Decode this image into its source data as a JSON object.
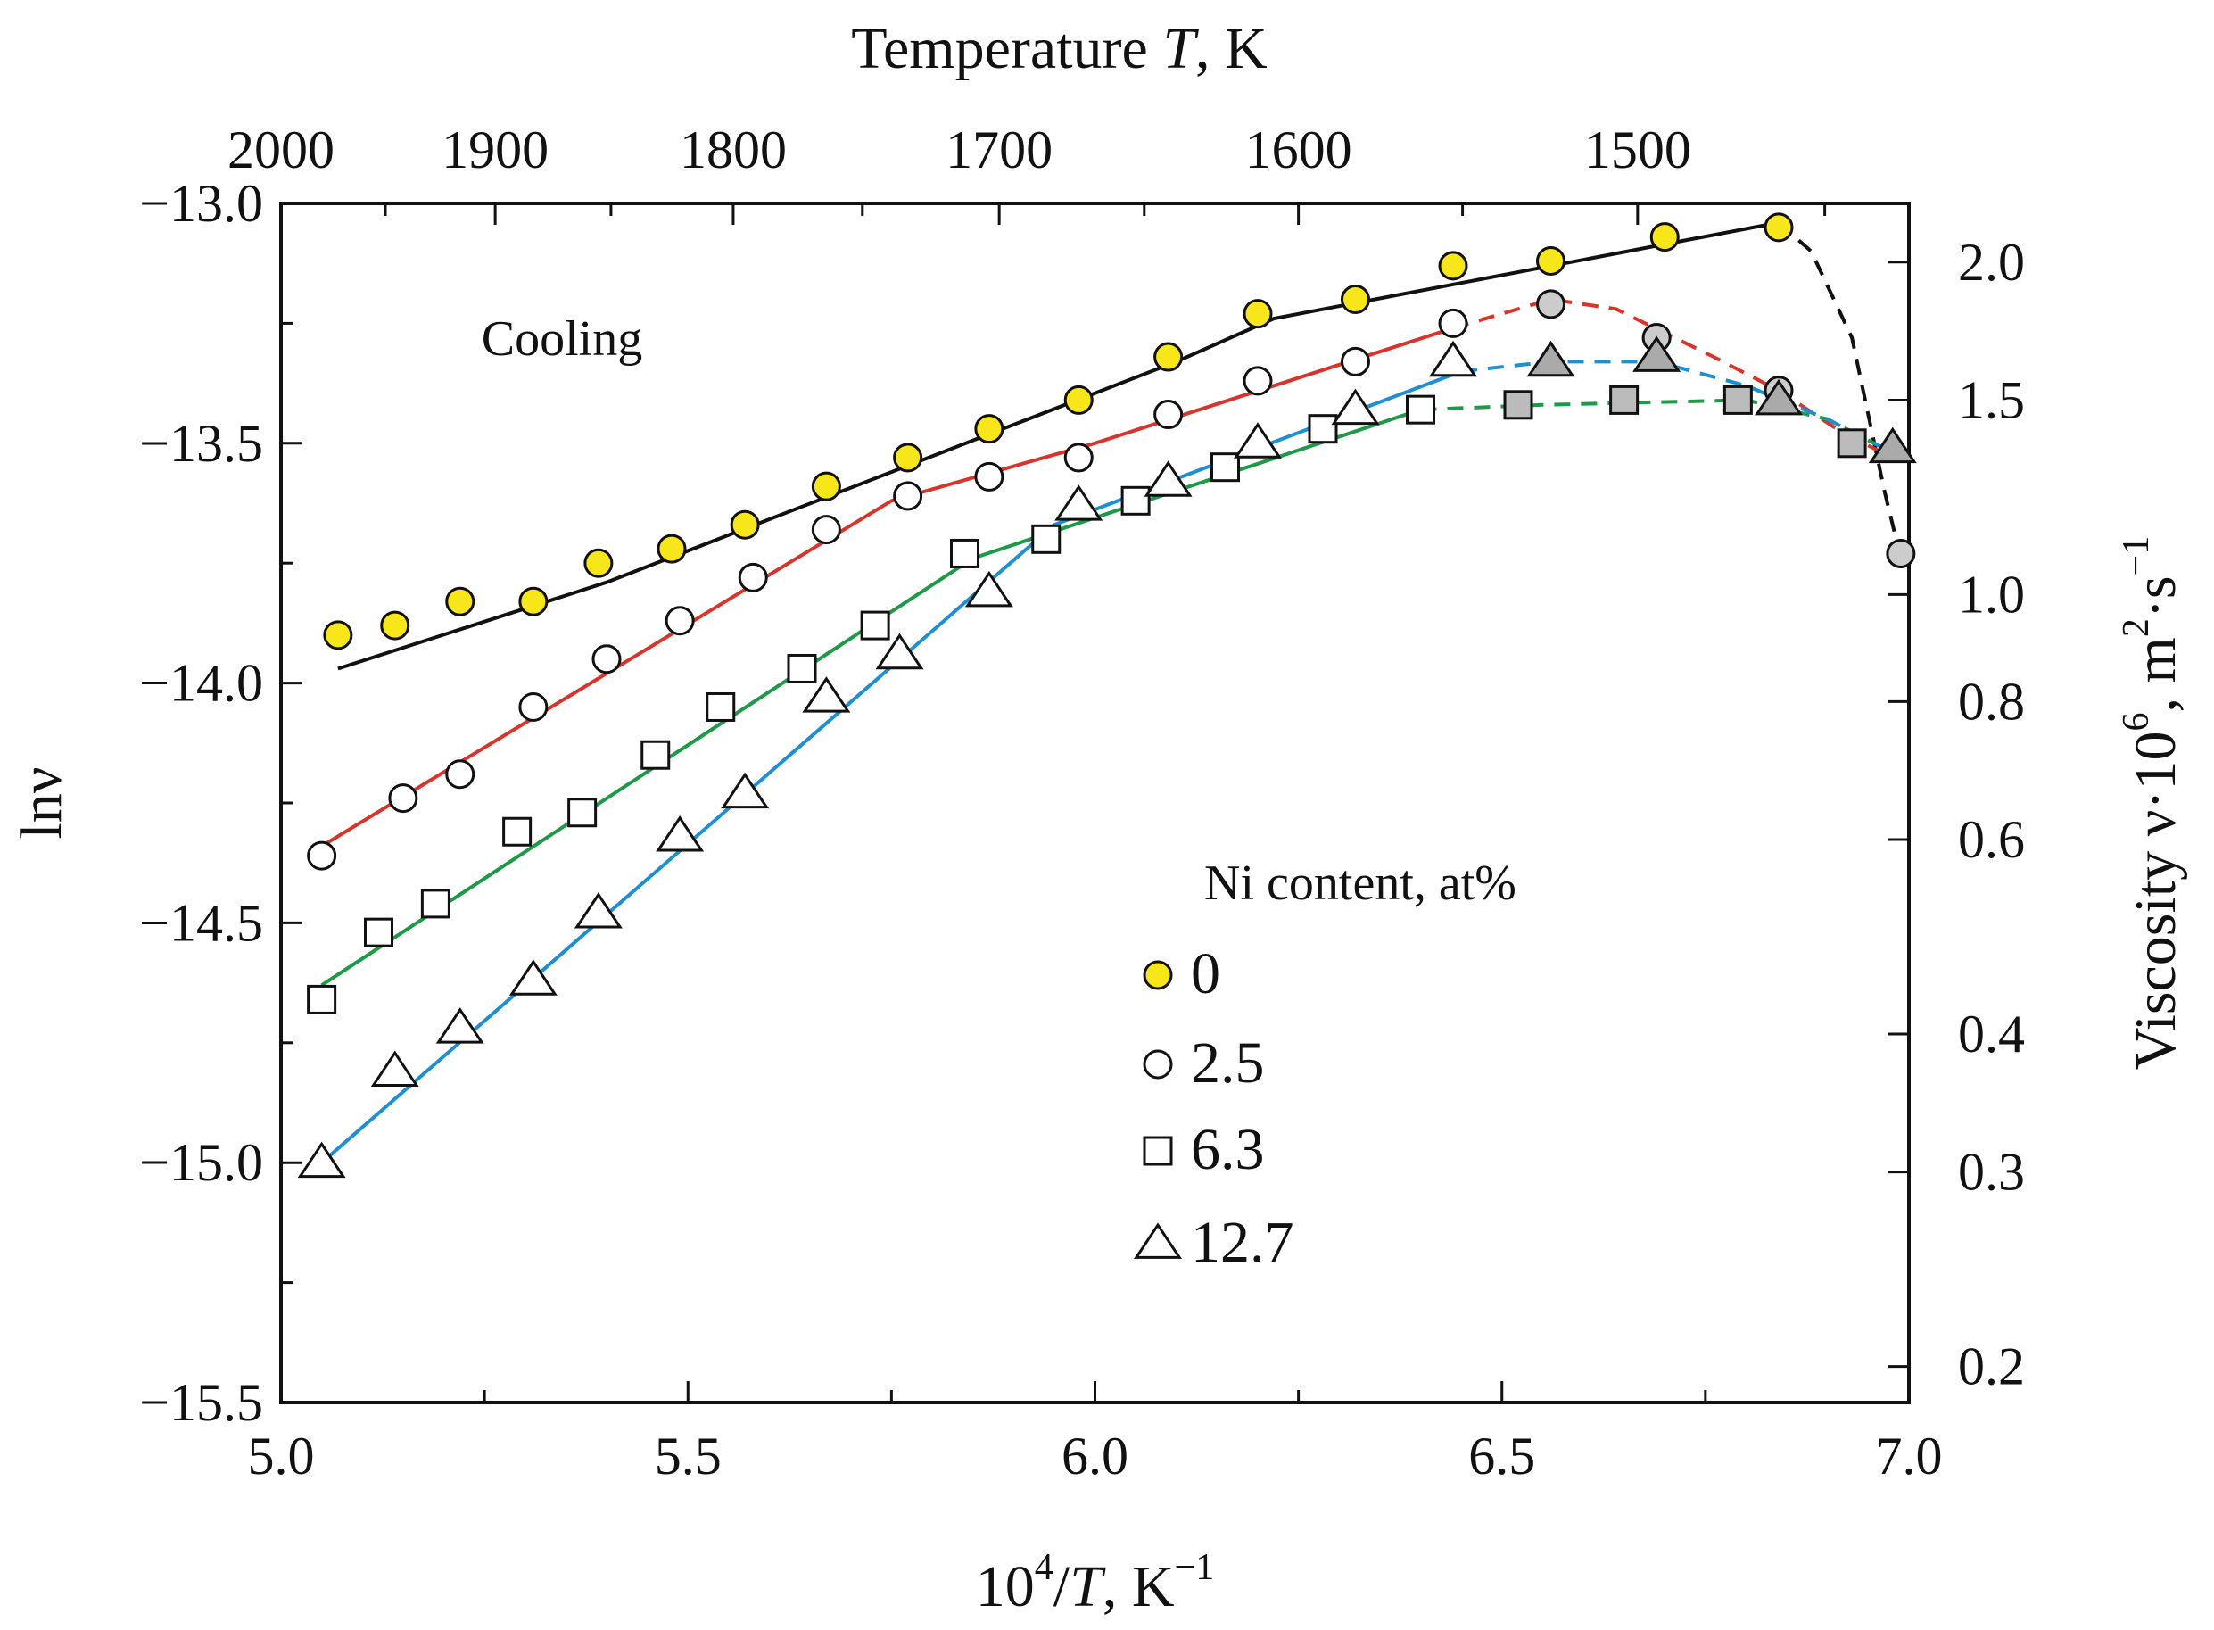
{
  "chart_data": {
    "type": "scatter",
    "x_axis": {
      "label_parts": [
        "10",
        "4",
        "/",
        "T",
        ", K",
        "−1"
      ],
      "range": [
        5.0,
        7.0
      ],
      "ticks": [
        5.0,
        5.5,
        6.0,
        6.5,
        7.0
      ],
      "tick_labels": [
        "5.0",
        "5.5",
        "6.0",
        "6.5",
        "7.0"
      ]
    },
    "y_axis": {
      "label": "lnν",
      "range": [
        -15.5,
        -13.0
      ],
      "ticks": [
        -13.0,
        -13.5,
        -14.0,
        -14.5,
        -15.0,
        -15.5
      ],
      "tick_labels": [
        "−13.0",
        "−13.5",
        "−14.0",
        "−14.5",
        "−15.0",
        "−15.5"
      ],
      "minor_ticks": [
        -13.25,
        -13.75,
        -14.25,
        -14.75,
        -15.25
      ]
    },
    "top_axis": {
      "label_parts": [
        "Temperature ",
        "T",
        ", K"
      ],
      "ticks": [
        2000,
        1900,
        1800,
        1700,
        1600,
        1500
      ],
      "tick_labels": [
        "2000",
        "1900",
        "1800",
        "1700",
        "1600",
        "1500"
      ],
      "minor_ticks": [
        1950,
        1850,
        1750,
        1650,
        1550,
        1450
      ]
    },
    "right_axis": {
      "label_parts": [
        "Viscosity ν·10",
        "6",
        ", m",
        "2",
        "·s",
        "−1"
      ],
      "ticks": [
        2.0,
        1.5,
        1.0,
        0.8,
        0.6,
        0.4,
        0.3,
        0.2
      ],
      "tick_labels": [
        "2.0",
        "1.5",
        "1.0",
        "0.8",
        "0.6",
        "0.4",
        "0.3",
        "0.2"
      ]
    },
    "annotation": "Cooling",
    "legend": {
      "title": "Ni content, at%",
      "placement": "center-right",
      "entries": [
        "0",
        "2.5",
        "6.3",
        "12.7"
      ]
    },
    "series": [
      {
        "name": "0",
        "marker": "circle",
        "marker_fill": "#f7e619",
        "line_color": "#111111",
        "points": [
          [
            5.07,
            -13.9
          ],
          [
            5.14,
            -13.88
          ],
          [
            5.22,
            -13.83
          ],
          [
            5.31,
            -13.83
          ],
          [
            5.39,
            -13.75
          ],
          [
            5.48,
            -13.72
          ],
          [
            5.57,
            -13.67
          ],
          [
            5.67,
            -13.59
          ],
          [
            5.77,
            -13.53
          ],
          [
            5.87,
            -13.47
          ],
          [
            5.98,
            -13.41
          ],
          [
            6.09,
            -13.32
          ],
          [
            6.2,
            -13.23
          ],
          [
            6.32,
            -13.2
          ],
          [
            6.44,
            -13.13
          ],
          [
            6.56,
            -13.12
          ],
          [
            6.7,
            -13.07
          ],
          [
            6.84,
            -13.05
          ]
        ],
        "hollow_points": [],
        "fit_solid": [
          [
            5.07,
            -13.97
          ],
          [
            5.4,
            -13.79
          ],
          [
            6.1,
            -13.33
          ],
          [
            6.22,
            -13.24
          ],
          [
            6.84,
            -13.04
          ]
        ],
        "fit_dashed": [
          [
            6.84,
            -13.04
          ],
          [
            6.88,
            -13.1
          ],
          [
            6.93,
            -13.28
          ],
          [
            6.97,
            -13.6
          ],
          [
            6.99,
            -13.74
          ]
        ],
        "extra_points": [
          [
            6.99,
            -13.73
          ]
        ],
        "extra_marker_fill": "#cccccc"
      },
      {
        "name": "2.5",
        "marker": "circle",
        "marker_fill": "#ffffff",
        "line_color": "#d8342b",
        "points": [
          [
            5.05,
            -14.36
          ],
          [
            5.15,
            -14.24
          ],
          [
            5.22,
            -14.19
          ],
          [
            5.31,
            -14.05
          ],
          [
            5.4,
            -13.95
          ],
          [
            5.49,
            -13.87
          ],
          [
            5.58,
            -13.78
          ],
          [
            5.67,
            -13.68
          ],
          [
            5.77,
            -13.61
          ],
          [
            5.87,
            -13.57
          ],
          [
            5.98,
            -13.53
          ],
          [
            6.09,
            -13.44
          ],
          [
            6.2,
            -13.37
          ],
          [
            6.32,
            -13.33
          ],
          [
            6.44,
            -13.25
          ]
        ],
        "fit_solid": [
          [
            5.05,
            -14.34
          ],
          [
            5.75,
            -13.62
          ],
          [
            6.0,
            -13.5
          ],
          [
            6.44,
            -13.26
          ]
        ],
        "fit_dashed": [
          [
            6.44,
            -13.26
          ],
          [
            6.56,
            -13.2
          ],
          [
            6.64,
            -13.22
          ],
          [
            6.76,
            -13.32
          ],
          [
            6.84,
            -13.39
          ],
          [
            6.92,
            -13.48
          ],
          [
            6.98,
            -13.53
          ]
        ],
        "extra_points": [
          [
            6.56,
            -13.21
          ],
          [
            6.69,
            -13.28
          ],
          [
            6.84,
            -13.39
          ]
        ],
        "extra_marker_fill": "#cccccc"
      },
      {
        "name": "6.3",
        "marker": "square",
        "marker_fill": "#ffffff",
        "line_color": "#1c9a48",
        "points": [
          [
            5.05,
            -14.66
          ],
          [
            5.12,
            -14.52
          ],
          [
            5.19,
            -14.46
          ],
          [
            5.29,
            -14.31
          ],
          [
            5.37,
            -14.27
          ],
          [
            5.46,
            -14.15
          ],
          [
            5.54,
            -14.05
          ],
          [
            5.64,
            -13.97
          ],
          [
            5.73,
            -13.88
          ],
          [
            5.84,
            -13.73
          ],
          [
            5.94,
            -13.7
          ],
          [
            6.05,
            -13.62
          ],
          [
            6.16,
            -13.55
          ],
          [
            6.28,
            -13.47
          ],
          [
            6.4,
            -13.43
          ]
        ],
        "fit_solid": [
          [
            5.05,
            -14.63
          ],
          [
            5.85,
            -13.74
          ],
          [
            6.4,
            -13.43
          ]
        ],
        "fit_dashed": [
          [
            6.4,
            -13.43
          ],
          [
            6.55,
            -13.42
          ],
          [
            6.8,
            -13.41
          ],
          [
            6.9,
            -13.45
          ],
          [
            6.98,
            -13.52
          ]
        ],
        "extra_points": [
          [
            6.52,
            -13.42
          ],
          [
            6.65,
            -13.41
          ],
          [
            6.79,
            -13.41
          ],
          [
            6.93,
            -13.5
          ]
        ],
        "extra_marker_fill": "#bbbbbb"
      },
      {
        "name": "12.7",
        "marker": "triangle",
        "marker_fill": "#ffffff",
        "line_color": "#1e8fd2",
        "points": [
          [
            5.05,
            -15.0
          ],
          [
            5.14,
            -14.81
          ],
          [
            5.22,
            -14.72
          ],
          [
            5.31,
            -14.62
          ],
          [
            5.39,
            -14.48
          ],
          [
            5.49,
            -14.32
          ],
          [
            5.57,
            -14.23
          ],
          [
            5.67,
            -14.03
          ],
          [
            5.76,
            -13.94
          ],
          [
            5.87,
            -13.81
          ],
          [
            5.98,
            -13.63
          ],
          [
            6.09,
            -13.58
          ],
          [
            6.2,
            -13.5
          ],
          [
            6.32,
            -13.43
          ],
          [
            6.44,
            -13.33
          ]
        ],
        "fit_solid": [
          [
            5.05,
            -15.0
          ],
          [
            5.95,
            -13.67
          ],
          [
            6.45,
            -13.35
          ]
        ],
        "fit_dashed": [
          [
            6.45,
            -13.35
          ],
          [
            6.56,
            -13.33
          ],
          [
            6.69,
            -13.33
          ],
          [
            6.8,
            -13.38
          ],
          [
            6.9,
            -13.45
          ],
          [
            6.98,
            -13.52
          ]
        ],
        "extra_points": [
          [
            6.56,
            -13.33
          ],
          [
            6.69,
            -13.32
          ],
          [
            6.84,
            -13.41
          ],
          [
            6.98,
            -13.51
          ]
        ],
        "extra_marker_fill": "#aaaaaa"
      }
    ]
  }
}
